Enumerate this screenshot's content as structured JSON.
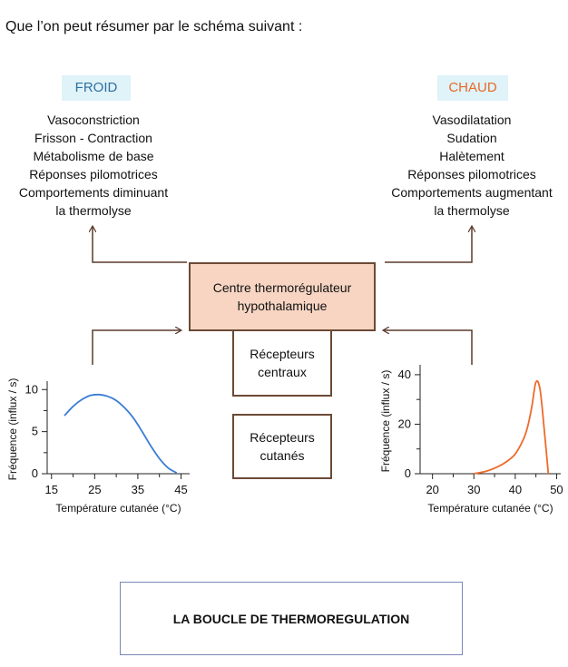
{
  "intro": "Que l’on peut résumer par le schéma suivant :",
  "cold": {
    "label": "FROID",
    "items": [
      "Vasoconstriction",
      "Frisson - Contraction",
      "Métabolisme de base",
      "Réponses pilomotrices",
      "Comportements diminuant",
      "la thermolyse"
    ]
  },
  "hot": {
    "label": "CHAUD",
    "items": [
      "Vasodilatation",
      "Sudation",
      "Halètement",
      "Réponses pilomotrices",
      "Comportements augmentant",
      "la thermolyse"
    ]
  },
  "center": {
    "line1": "Centre thermorégulateur",
    "line2": "hypothalamique"
  },
  "central_receptors": {
    "line1": "Récepteurs",
    "line2": "centraux"
  },
  "cutaneous_receptors": {
    "line1": "Récepteurs",
    "line2": "cutanés"
  },
  "footer": "LA BOUCLE DE THERMOREGULATION",
  "colors": {
    "cold_curve": "#3a7dd6",
    "hot_curve": "#ee6a2a",
    "arrow": "#5a3a2a",
    "center_fill": "#f8d5c3",
    "tag_bg": "#dff3f8"
  },
  "chart_data": [
    {
      "type": "line",
      "xlabel": "Température cutanée (°C)",
      "ylabel": "Fréquence (influx / s)",
      "x_ticks": [
        15,
        25,
        35,
        45
      ],
      "y_ticks": [
        0,
        5,
        10
      ],
      "xlim": [
        14,
        47
      ],
      "ylim": [
        0,
        11
      ],
      "series": [
        {
          "x": [
            18,
            20,
            22,
            24,
            26,
            28,
            30,
            32,
            34,
            36,
            38,
            40,
            42,
            44
          ],
          "y": [
            6.9,
            8.0,
            8.8,
            9.3,
            9.4,
            9.2,
            8.7,
            7.8,
            6.6,
            5.0,
            3.3,
            1.8,
            0.7,
            0.1
          ]
        }
      ]
    },
    {
      "type": "line",
      "xlabel": "Température cutanée (°C)",
      "ylabel": "Fréquence (influx / s)",
      "x_ticks": [
        20,
        30,
        40,
        50
      ],
      "y_ticks": [
        0,
        20,
        40
      ],
      "xlim": [
        17,
        51
      ],
      "ylim": [
        0,
        44
      ],
      "series": [
        {
          "x": [
            30,
            33,
            36,
            38,
            40,
            42,
            43,
            44,
            45,
            46,
            47,
            48
          ],
          "y": [
            0,
            1,
            3,
            5,
            8,
            14,
            19,
            27,
            37,
            34,
            18,
            0
          ]
        }
      ]
    }
  ]
}
